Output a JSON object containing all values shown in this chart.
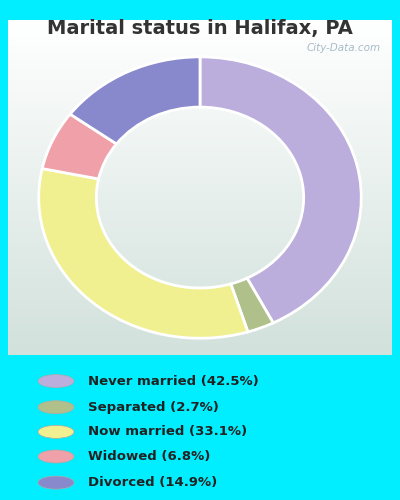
{
  "title": "Marital status in Halifax, PA",
  "categories": [
    "Never married",
    "Separated",
    "Now married",
    "Widowed",
    "Divorced"
  ],
  "values": [
    42.5,
    2.7,
    33.1,
    6.8,
    14.9
  ],
  "colors": [
    "#bbaedd",
    "#afc08a",
    "#f0f090",
    "#f0a0a8",
    "#8888cc"
  ],
  "bg_cyan": "#00eeff",
  "bg_chart_color1": "#e8f5ee",
  "bg_chart_color2": "#f5faf7",
  "title_color": "#333333",
  "legend_labels": [
    "Never married (42.5%)",
    "Separated (2.7%)",
    "Now married (33.1%)",
    "Widowed (6.8%)",
    "Divorced (14.9%)"
  ],
  "watermark": "City-Data.com",
  "title_fontsize": 14
}
